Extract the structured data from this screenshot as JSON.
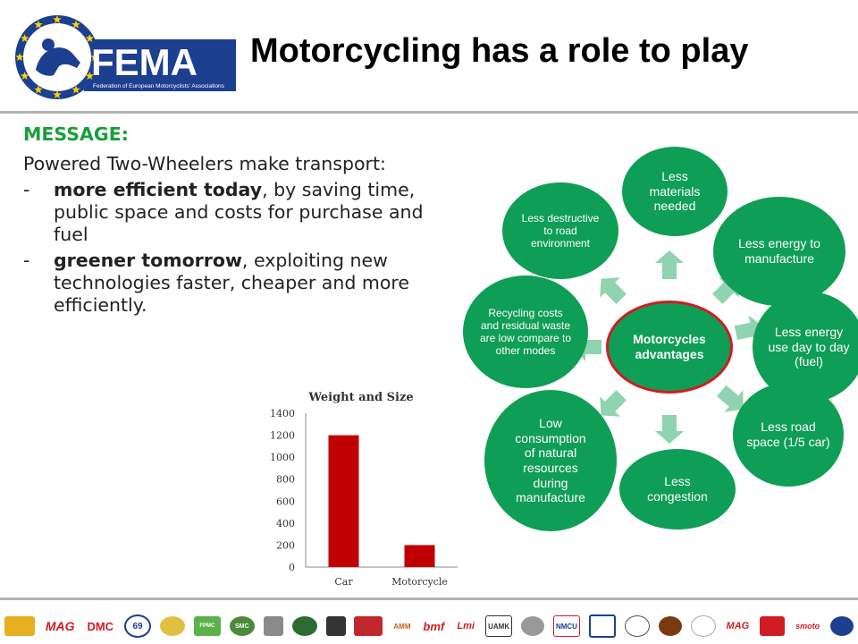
{
  "header": {
    "title": "Motorcycling has a role to play",
    "logo_text": "FEMA",
    "logo_subtext": "Federation of European Motorcyclists' Associations"
  },
  "message": {
    "heading": "MESSAGE:",
    "intro": "Powered Two-Wheelers make transport:",
    "bullets": [
      {
        "dash": "-",
        "bold": "more efficient today",
        "rest": ", by saving time, public space and costs for purchase and fuel"
      },
      {
        "dash": "-",
        "bold": "greener tomorrow",
        "rest": ", exploiting new technologies faster, cheaper and more efficiently."
      }
    ]
  },
  "chart_data": {
    "type": "bar",
    "title": "Weight and Size",
    "categories": [
      "Car",
      "Motorcycle"
    ],
    "values": [
      1200,
      200
    ],
    "ylim": [
      0,
      1400
    ],
    "yticks": [
      0,
      200,
      400,
      600,
      800,
      1000,
      1200,
      1400
    ],
    "bar_color": "#c00000",
    "grid": false
  },
  "diagram": {
    "center": "Motorcycles advantages",
    "nodes": [
      "Less materials needed",
      "Less energy to manufacture",
      "Less energy use day to day (fuel)",
      "Less road space (1/5 car)",
      "Less congestion",
      "Low consumption of natural resources during manufacture",
      "Recycling costs and residual waste are low compare to other modes",
      "Less destructive to road environment"
    ],
    "node_color": "#0f9e56",
    "arrow_color": "#8fd3b0",
    "center_border": "#d11c23"
  },
  "footer": {
    "logos": [
      "MAG",
      "DMC",
      "69",
      "FPMC",
      "SMC",
      "AMM",
      "bmf",
      "UAMK",
      "NMCU",
      "MAG"
    ]
  },
  "colors": {
    "heading_green": "#1a9e3c",
    "rule_gray": "#b3b3b3",
    "fema_blue": "#1d3f8f",
    "star_yellow": "#f5d20a"
  }
}
